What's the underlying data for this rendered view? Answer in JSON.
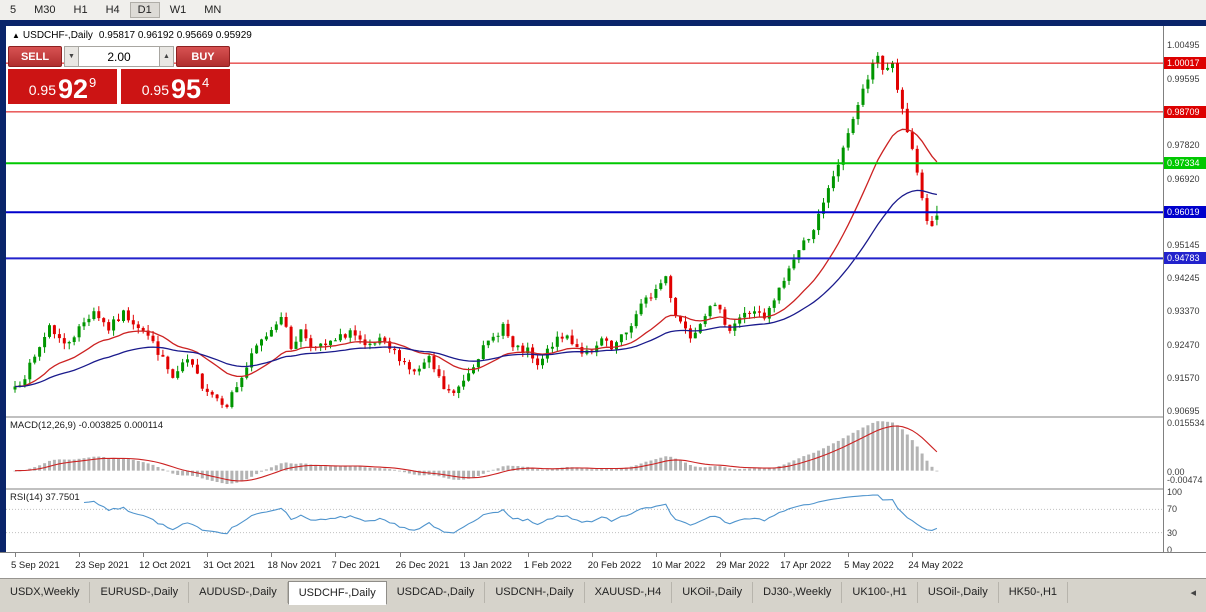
{
  "toolbar": {
    "timeframes": [
      "5",
      "M30",
      "H1",
      "H4",
      "D1",
      "W1",
      "MN"
    ],
    "active": "D1"
  },
  "chart_header": {
    "collapse_icon": "▲",
    "symbol": "USDCHF-,Daily",
    "ohlc_text": "0.95817 0.96192 0.95669 0.95929"
  },
  "trade_panel": {
    "sell_label": "SELL",
    "buy_label": "BUY",
    "volume": "2.00",
    "bid": {
      "prefix": "0.95",
      "big": "92",
      "sup": "9"
    },
    "ask": {
      "prefix": "0.95",
      "big": "95",
      "sup": "4"
    },
    "price_bg_color": "#cc1414"
  },
  "price_scale": {
    "ticks": [
      1.00495,
      0.99595,
      0.9782,
      0.9692,
      0.95145,
      0.94245,
      0.9337,
      0.9247,
      0.9157,
      0.90695
    ]
  },
  "horizontal_lines": [
    {
      "price": 1.00017,
      "color": "#dd0000",
      "thickness": 1
    },
    {
      "price": 0.98709,
      "color": "#dd0000",
      "thickness": 1
    },
    {
      "price": 0.97334,
      "color": "#00c800",
      "thickness": 2
    },
    {
      "price": 0.96019,
      "color": "#0000cc",
      "thickness": 2
    },
    {
      "price": 0.94783,
      "color": "#2222cc",
      "thickness": 2
    }
  ],
  "macd_panel": {
    "label": "MACD(12,26,9)",
    "values_text": "-0.003825 0.000114",
    "scale_labels": [
      {
        "value": 0.015534,
        "text": "0.015534"
      },
      {
        "value": 0,
        "text": "0.00"
      },
      {
        "value": -0.00474,
        "text": "-0.00474"
      }
    ]
  },
  "rsi_panel": {
    "label": "RSI(14) 37.7501",
    "scale_labels": [
      {
        "value": 100,
        "text": "100"
      },
      {
        "value": 70,
        "text": "70"
      },
      {
        "value": 30,
        "text": "30"
      },
      {
        "value": 0,
        "text": "0"
      }
    ],
    "levels": [
      70,
      30
    ]
  },
  "date_axis": {
    "labels": [
      "5 Sep 2021",
      "23 Sep 2021",
      "12 Oct 2021",
      "31 Oct 2021",
      "18 Nov 2021",
      "7 Dec 2021",
      "26 Dec 2021",
      "13 Jan 2022",
      "1 Feb 2022",
      "20 Feb 2022",
      "10 Mar 2022",
      "29 Mar 2022",
      "17 Apr 2022",
      "5 May 2022",
      "24 May 2022"
    ]
  },
  "tabs": {
    "items": [
      "USDX,Weekly",
      "EURUSD-,Daily",
      "AUDUSD-,Daily",
      "USDCHF-,Daily",
      "USDCAD-,Daily",
      "USDCNH-,Daily",
      "XAUUSD-,H4",
      "UKOil-,Daily",
      "DJ30-,Weekly",
      "UK100-,H1",
      "USOil-,Daily",
      "HK50-,H1"
    ],
    "active_index": 3,
    "scroll_icon": "◂"
  },
  "chart_data": {
    "type": "candlestick",
    "symbol": "USDCHF-",
    "timeframe": "Daily",
    "title": "USDCHF-,Daily",
    "current_ohlc": {
      "open": 0.95817,
      "high": 0.96192,
      "low": 0.95669,
      "close": 0.95929
    },
    "ylim": [
      0.9056,
      1.0101
    ],
    "candle_count": 188,
    "candles_per_xlabel": 13,
    "noise_amplitude": 0.0012,
    "wick_amplitude": 0.0016,
    "up_color": "#009600",
    "down_color": "#e00000",
    "close_anchors": [
      [
        0,
        0.9135
      ],
      [
        2,
        0.9165
      ],
      [
        4,
        0.921
      ],
      [
        7,
        0.93
      ],
      [
        10,
        0.9245
      ],
      [
        13,
        0.929
      ],
      [
        16,
        0.934
      ],
      [
        19,
        0.929
      ],
      [
        22,
        0.933
      ],
      [
        26,
        0.929
      ],
      [
        29,
        0.923
      ],
      [
        32,
        0.9155
      ],
      [
        35,
        0.9205
      ],
      [
        38,
        0.914
      ],
      [
        41,
        0.9105
      ],
      [
        43,
        0.909
      ],
      [
        46,
        0.916
      ],
      [
        49,
        0.924
      ],
      [
        52,
        0.929
      ],
      [
        54,
        0.933
      ],
      [
        56,
        0.924
      ],
      [
        58,
        0.9285
      ],
      [
        61,
        0.9235
      ],
      [
        65,
        0.9255
      ],
      [
        68,
        0.9285
      ],
      [
        71,
        0.9235
      ],
      [
        74,
        0.9255
      ],
      [
        78,
        0.9215
      ],
      [
        81,
        0.917
      ],
      [
        84,
        0.9205
      ],
      [
        87,
        0.913
      ],
      [
        89,
        0.9112
      ],
      [
        91,
        0.9155
      ],
      [
        94,
        0.922
      ],
      [
        97,
        0.9265
      ],
      [
        99,
        0.93
      ],
      [
        101,
        0.9235
      ],
      [
        104,
        0.9228
      ],
      [
        106,
        0.9185
      ],
      [
        109,
        0.925
      ],
      [
        112,
        0.927
      ],
      [
        115,
        0.923
      ],
      [
        117,
        0.9218
      ],
      [
        119,
        0.926
      ],
      [
        121,
        0.9232
      ],
      [
        124,
        0.928
      ],
      [
        127,
        0.935
      ],
      [
        130,
        0.9395
      ],
      [
        132,
        0.943
      ],
      [
        134,
        0.933
      ],
      [
        137,
        0.9272
      ],
      [
        139,
        0.931
      ],
      [
        141,
        0.936
      ],
      [
        143,
        0.933
      ],
      [
        145,
        0.9292
      ],
      [
        147,
        0.932
      ],
      [
        150,
        0.934
      ],
      [
        152,
        0.9312
      ],
      [
        154,
        0.9365
      ],
      [
        156,
        0.942
      ],
      [
        158,
        0.948
      ],
      [
        160,
        0.952
      ],
      [
        162,
        0.956
      ],
      [
        164,
        0.962
      ],
      [
        166,
        0.97
      ],
      [
        168,
        0.9765
      ],
      [
        169,
        0.982
      ],
      [
        171,
        0.989
      ],
      [
        173,
        0.996
      ],
      [
        175,
        1.002
      ],
      [
        176,
        0.9985
      ],
      [
        178,
        1.0
      ],
      [
        180,
        0.987
      ],
      [
        182,
        0.976
      ],
      [
        184,
        0.964
      ],
      [
        185,
        0.958
      ],
      [
        186,
        0.956
      ],
      [
        187,
        0.9593
      ]
    ],
    "moving_averages": [
      {
        "type": "EMA",
        "period": 20,
        "color": "#cc2222"
      },
      {
        "type": "EMA",
        "period": 45,
        "color": "#1a1a8c"
      }
    ],
    "macd": {
      "fast": 12,
      "slow": 26,
      "signal": 9,
      "histogram_color": "#b4b4b4",
      "signal_color": "#cc2222"
    },
    "rsi": {
      "period": 14,
      "color": "#4f94cd",
      "levels_color": "#c0c0c0"
    }
  }
}
